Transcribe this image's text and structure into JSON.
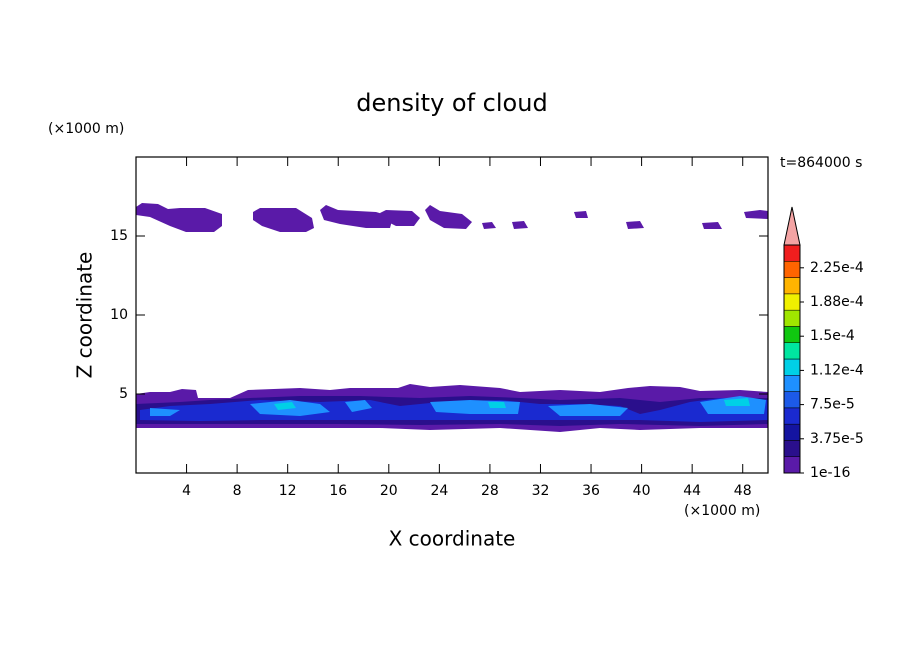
{
  "chart_data": {
    "type": "contour",
    "title": "density of cloud",
    "xlabel": "X coordinate",
    "ylabel": "Z coordinate",
    "xunit": "(×1000 m)",
    "yunit": "(×1000 m)",
    "time_label": "t=864000 s",
    "xlim": [
      0,
      50
    ],
    "xticks": [
      4,
      8,
      12,
      16,
      20,
      24,
      28,
      32,
      36,
      40,
      44,
      48
    ],
    "ylim": [
      0,
      20
    ],
    "yticks": [
      5,
      10,
      15
    ],
    "colorbar": {
      "clim": [
        1e-16,
        0.00025
      ],
      "ticks": [
        1e-16,
        {
          "value": 3.75e-05,
          "label": "3.75e-5"
        },
        {
          "value": 7.5e-05,
          "label": "7.5e-5"
        },
        {
          "value": 0.0001125,
          "label": "1.12e-4"
        },
        {
          "value": 0.00015,
          "label": "1.5e-4"
        },
        {
          "value": 0.0001875,
          "label": "1.88e-4"
        },
        {
          "value": 0.000225,
          "label": "2.25e-4"
        }
      ],
      "colors": [
        "#5a1aa8",
        "#2a0f8c",
        "#1414a0",
        "#1a2ad0",
        "#1c5ae8",
        "#1e90ff",
        "#00d0e6",
        "#00e6a0",
        "#10c810",
        "#a0e600",
        "#f0f000",
        "#ffb400",
        "#ff6400",
        "#f01e1e"
      ]
    }
  }
}
